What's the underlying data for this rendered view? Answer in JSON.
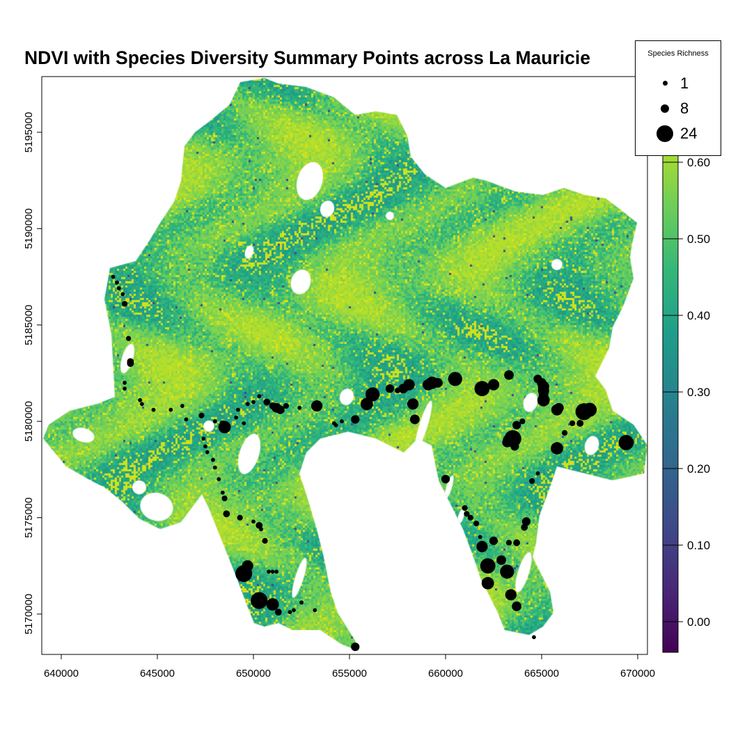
{
  "title": "NDVI with Species Diversity Summary Points across La Mauricie",
  "legend": {
    "title": "Species Richness",
    "items": [
      {
        "label": "1",
        "value": 1
      },
      {
        "label": "8",
        "value": 8
      },
      {
        "label": "24",
        "value": 24
      }
    ]
  },
  "chart_data": {
    "type": "scatter",
    "title": "NDVI with Species Diversity Summary Points across La Mauricie",
    "xlabel": "",
    "ylabel": "",
    "xlim": [
      639000,
      670600
    ],
    "ylim": [
      5168000,
      5198000
    ],
    "x_ticks": [
      "640000",
      "645000",
      "650000",
      "655000",
      "660000",
      "665000",
      "670000"
    ],
    "y_ticks": [
      "5170000",
      "5175000",
      "5180000",
      "5185000",
      "5190000",
      "5195000"
    ],
    "raster": {
      "name": "NDVI",
      "palette": "viridis",
      "range": [
        -0.04,
        0.71
      ],
      "colorbar_ticks": [
        "0.00",
        "0.10",
        "0.20",
        "0.30",
        "0.40",
        "0.50",
        "0.60"
      ],
      "colors": [
        "#440154",
        "#482878",
        "#3e4a89",
        "#31688e",
        "#26828e",
        "#1f9e89",
        "#35b779",
        "#6ece58",
        "#b5de2b",
        "#fde725"
      ]
    },
    "points_fields": [
      "x",
      "y",
      "richness"
    ],
    "points": [
      [
        642700,
        5187500,
        1
      ],
      [
        642900,
        5187200,
        1
      ],
      [
        643000,
        5186900,
        1
      ],
      [
        643200,
        5186600,
        1
      ],
      [
        643300,
        5186100,
        4
      ],
      [
        643500,
        5184300,
        3
      ],
      [
        643600,
        5183100,
        6
      ],
      [
        643600,
        5183000,
        6
      ],
      [
        643300,
        5182000,
        1
      ],
      [
        643300,
        5181700,
        1
      ],
      [
        644100,
        5181100,
        1
      ],
      [
        644200,
        5180900,
        1
      ],
      [
        644800,
        5180600,
        1
      ],
      [
        645700,
        5180600,
        1
      ],
      [
        646300,
        5180800,
        1
      ],
      [
        646500,
        5180100,
        1
      ],
      [
        647300,
        5180300,
        4
      ],
      [
        648000,
        5180000,
        1
      ],
      [
        648400,
        5179900,
        4
      ],
      [
        648500,
        5179700,
        16
      ],
      [
        649100,
        5180200,
        1
      ],
      [
        649200,
        5180600,
        1
      ],
      [
        649500,
        5179900,
        1
      ],
      [
        649700,
        5180900,
        1
      ],
      [
        650000,
        5181000,
        1
      ],
      [
        650300,
        5181300,
        1
      ],
      [
        650700,
        5181000,
        6
      ],
      [
        651000,
        5180800,
        6
      ],
      [
        651200,
        5180700,
        11
      ],
      [
        651400,
        5180600,
        9
      ],
      [
        651700,
        5180800,
        4
      ],
      [
        652400,
        5180700,
        1
      ],
      [
        653300,
        5180800,
        14
      ],
      [
        654200,
        5179900,
        1
      ],
      [
        654300,
        5179800,
        1
      ],
      [
        654600,
        5180000,
        1
      ],
      [
        655300,
        5180100,
        9
      ],
      [
        655900,
        5180900,
        16
      ],
      [
        656200,
        5181400,
        19
      ],
      [
        657100,
        5181700,
        9
      ],
      [
        657500,
        5181600,
        4
      ],
      [
        657800,
        5181700,
        11
      ],
      [
        658100,
        5181900,
        14
      ],
      [
        658300,
        5180900,
        14
      ],
      [
        658400,
        5180100,
        11
      ],
      [
        659100,
        5181900,
        14
      ],
      [
        659300,
        5182000,
        16
      ],
      [
        659600,
        5182000,
        11
      ],
      [
        660500,
        5182200,
        19
      ],
      [
        661900,
        5181700,
        21
      ],
      [
        662500,
        5181900,
        14
      ],
      [
        663300,
        5182400,
        11
      ],
      [
        664800,
        5182200,
        9
      ],
      [
        665000,
        5182000,
        11
      ],
      [
        665100,
        5181800,
        14
      ],
      [
        665100,
        5181600,
        14
      ],
      [
        665100,
        5181400,
        11
      ],
      [
        665100,
        5181100,
        16
      ],
      [
        665800,
        5180600,
        14
      ],
      [
        665900,
        5180700,
        11
      ],
      [
        667200,
        5180500,
        24
      ],
      [
        667500,
        5180600,
        19
      ],
      [
        669400,
        5178900,
        21
      ],
      [
        667000,
        5179900,
        6
      ],
      [
        666600,
        5179900,
        4
      ],
      [
        666200,
        5179400,
        4
      ],
      [
        665800,
        5178600,
        16
      ],
      [
        665600,
        5178500,
        1
      ],
      [
        663700,
        5179800,
        9
      ],
      [
        664000,
        5180000,
        4
      ],
      [
        663500,
        5179100,
        24
      ],
      [
        663300,
        5179000,
        16
      ],
      [
        663200,
        5178900,
        11
      ],
      [
        663600,
        5178700,
        9
      ],
      [
        664800,
        5177300,
        1
      ],
      [
        664500,
        5176900,
        4
      ],
      [
        664200,
        5174800,
        9
      ],
      [
        664100,
        5174500,
        6
      ],
      [
        663700,
        5173700,
        6
      ],
      [
        663300,
        5173700,
        4
      ],
      [
        662500,
        5173800,
        9
      ],
      [
        661900,
        5173500,
        14
      ],
      [
        662900,
        5172800,
        11
      ],
      [
        662200,
        5172500,
        21
      ],
      [
        662200,
        5171600,
        16
      ],
      [
        663200,
        5172200,
        19
      ],
      [
        663400,
        5171000,
        14
      ],
      [
        663700,
        5170400,
        11
      ],
      [
        664600,
        5168800,
        1
      ],
      [
        660000,
        5177000,
        9
      ],
      [
        661000,
        5175500,
        4
      ],
      [
        661100,
        5175200,
        4
      ],
      [
        661300,
        5175000,
        4
      ],
      [
        661600,
        5174700,
        4
      ],
      [
        661800,
        5174000,
        1
      ],
      [
        647400,
        5179100,
        1
      ],
      [
        647500,
        5178700,
        1
      ],
      [
        647600,
        5178400,
        1
      ],
      [
        647900,
        5178000,
        1
      ],
      [
        648000,
        5177600,
        1
      ],
      [
        648200,
        5177000,
        1
      ],
      [
        648400,
        5176300,
        1
      ],
      [
        648500,
        5176000,
        4
      ],
      [
        648600,
        5175200,
        6
      ],
      [
        649300,
        5175000,
        4
      ],
      [
        650000,
        5174800,
        1
      ],
      [
        650300,
        5174600,
        6
      ],
      [
        650400,
        5174400,
        1
      ],
      [
        650600,
        5173800,
        4
      ],
      [
        649700,
        5172500,
        14
      ],
      [
        649500,
        5172100,
        24
      ],
      [
        650800,
        5172200,
        1
      ],
      [
        651000,
        5172200,
        1
      ],
      [
        651200,
        5172200,
        1
      ],
      [
        650300,
        5170700,
        24
      ],
      [
        651000,
        5170500,
        16
      ],
      [
        651300,
        5170100,
        6
      ],
      [
        651900,
        5170100,
        1
      ],
      [
        652100,
        5170200,
        1
      ],
      [
        652500,
        5170600,
        1
      ],
      [
        653200,
        5170200,
        1
      ],
      [
        655300,
        5168300,
        9
      ]
    ]
  }
}
